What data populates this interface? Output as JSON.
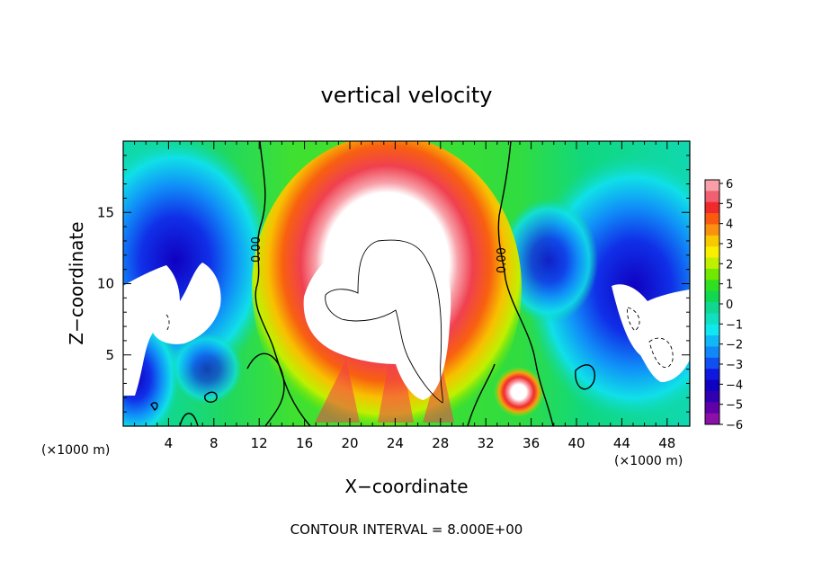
{
  "chart_data": {
    "type": "heatmap",
    "title": "vertical velocity",
    "xlabel": "X−coordinate",
    "ylabel": "Z−coordinate",
    "x_unit_left": "(×1000 m)",
    "x_unit_right": "(×1000 m)",
    "footer": "CONTOUR INTERVAL = 8.000E+00",
    "xlim": [
      0,
      50
    ],
    "ylim": [
      0,
      20
    ],
    "x_ticks": [
      4,
      8,
      12,
      16,
      20,
      24,
      28,
      32,
      36,
      40,
      44,
      48
    ],
    "x_tick_labels": [
      "4",
      "8",
      "12",
      "16",
      "20",
      "24",
      "28",
      "32",
      "36",
      "40",
      "44",
      "48"
    ],
    "y_ticks": [
      5,
      10,
      15
    ],
    "y_tick_labels": [
      "5",
      "10",
      "15"
    ],
    "colorbar": {
      "min": -6,
      "max": 6,
      "tick_labels": [
        "6",
        "5",
        "4",
        "3",
        "2",
        "1",
        "0",
        "−1",
        "−2",
        "−3",
        "−4",
        "−5",
        "−6"
      ],
      "colors": [
        "#f7a0a8",
        "#f06070",
        "#f02a2a",
        "#f85a10",
        "#fa9010",
        "#f8c800",
        "#f8f000",
        "#c0f000",
        "#70e800",
        "#30e020",
        "#10d850",
        "#10d890",
        "#10e0c0",
        "#10e8f0",
        "#10b8f8",
        "#1088f8",
        "#1050f0",
        "#1018e0",
        "#1000c0",
        "#3000b0",
        "#6000a8",
        "#8a10a8"
      ]
    },
    "contour_labels": [
      "0.00",
      "0.00"
    ],
    "grid": false
  }
}
